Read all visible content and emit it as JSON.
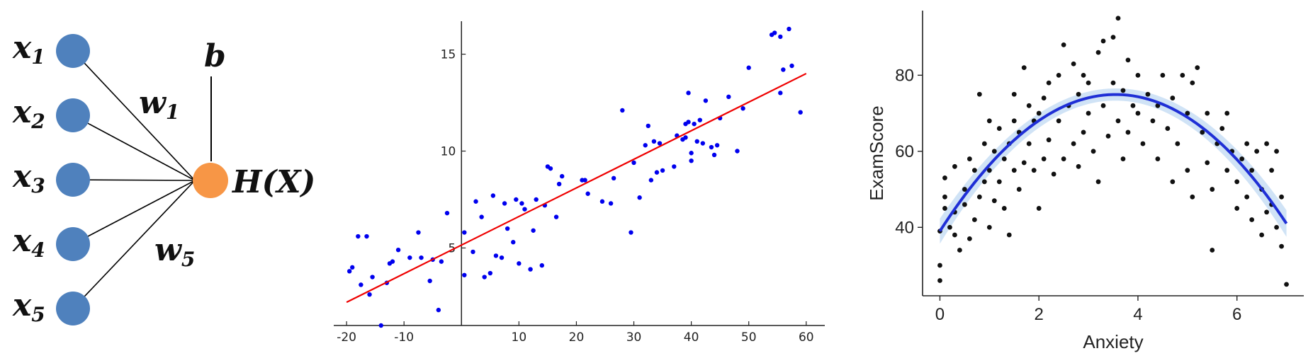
{
  "neuron_diagram": {
    "inputs": [
      {
        "name": "x",
        "sub": "1"
      },
      {
        "name": "x",
        "sub": "2"
      },
      {
        "name": "x",
        "sub": "3"
      },
      {
        "name": "x",
        "sub": "4"
      },
      {
        "name": "x",
        "sub": "5"
      }
    ],
    "bias": "b",
    "weight_labels": [
      {
        "name": "w",
        "sub": "1"
      },
      {
        "name": "w",
        "sub": "5"
      }
    ],
    "output": "H(X)",
    "colors": {
      "input": "#4f81bd",
      "output": "#f79646",
      "edge": "#000000"
    }
  },
  "chart_data": [
    {
      "type": "scatter",
      "title": "",
      "xlabel": "",
      "ylabel": "",
      "xlim": [
        -21,
        62
      ],
      "ylim": [
        1,
        16.7
      ],
      "xticks": [
        -20,
        -10,
        10,
        20,
        30,
        40,
        50,
        60
      ],
      "yticks": [
        5,
        10,
        15
      ],
      "axes_style": "centered-at-origin",
      "grid": false,
      "point_color": "#0000ee",
      "fit_color": "#ee0000",
      "fit_line": {
        "x": [
          -20,
          60
        ],
        "y": [
          2.2,
          14.0
        ]
      },
      "points": [
        [
          -19.5,
          3.8
        ],
        [
          -19,
          4.0
        ],
        [
          -18,
          5.6
        ],
        [
          -17.5,
          3.1
        ],
        [
          -16.5,
          5.6
        ],
        [
          -16,
          2.6
        ],
        [
          -15.5,
          3.5
        ],
        [
          -14,
          1.0
        ],
        [
          -13,
          3.2
        ],
        [
          -12.5,
          4.2
        ],
        [
          -12,
          4.3
        ],
        [
          -11,
          4.9
        ],
        [
          -9,
          4.5
        ],
        [
          -7.5,
          5.8
        ],
        [
          -7,
          4.5
        ],
        [
          -5.5,
          3.3
        ],
        [
          -5,
          4.4
        ],
        [
          -4,
          1.8
        ],
        [
          -3.5,
          4.3
        ],
        [
          -2.5,
          6.8
        ],
        [
          0.5,
          3.6
        ],
        [
          0.5,
          5.8
        ],
        [
          2,
          4.8
        ],
        [
          2.5,
          7.4
        ],
        [
          3.5,
          6.6
        ],
        [
          4,
          3.5
        ],
        [
          5,
          3.7
        ],
        [
          5.5,
          7.7
        ],
        [
          6,
          4.6
        ],
        [
          7,
          4.5
        ],
        [
          7.5,
          7.3
        ],
        [
          8,
          6.0
        ],
        [
          9,
          5.3
        ],
        [
          9.5,
          7.5
        ],
        [
          10,
          4.2
        ],
        [
          10.5,
          7.3
        ],
        [
          11,
          7.0
        ],
        [
          12,
          3.9
        ],
        [
          12.5,
          5.9
        ],
        [
          13,
          7.5
        ],
        [
          14,
          4.1
        ],
        [
          14.5,
          7.2
        ],
        [
          15,
          9.2
        ],
        [
          15.5,
          9.1
        ],
        [
          16.5,
          6.6
        ],
        [
          17,
          8.3
        ],
        [
          17.5,
          8.7
        ],
        [
          21,
          8.5
        ],
        [
          21.5,
          8.5
        ],
        [
          22,
          7.8
        ],
        [
          24.5,
          7.4
        ],
        [
          26,
          7.3
        ],
        [
          26.5,
          8.6
        ],
        [
          28,
          12.1
        ],
        [
          29.5,
          5.8
        ],
        [
          30,
          9.4
        ],
        [
          31,
          7.6
        ],
        [
          32,
          10.3
        ],
        [
          32.5,
          11.3
        ],
        [
          33,
          8.5
        ],
        [
          33.5,
          10.5
        ],
        [
          34,
          8.9
        ],
        [
          34.5,
          10.4
        ],
        [
          35,
          9.0
        ],
        [
          37,
          9.2
        ],
        [
          37.5,
          10.8
        ],
        [
          38.5,
          10.6
        ],
        [
          39,
          10.7
        ],
        [
          39,
          11.4
        ],
        [
          39.5,
          11.5
        ],
        [
          39.5,
          13.0
        ],
        [
          40,
          9.5
        ],
        [
          40,
          9.9
        ],
        [
          40.5,
          11.4
        ],
        [
          41,
          10.5
        ],
        [
          41.5,
          11.6
        ],
        [
          42,
          10.4
        ],
        [
          42.5,
          12.6
        ],
        [
          43.5,
          10.2
        ],
        [
          44,
          9.8
        ],
        [
          44.5,
          10.3
        ],
        [
          45,
          11.7
        ],
        [
          46.5,
          12.8
        ],
        [
          48,
          10.0
        ],
        [
          49,
          12.2
        ],
        [
          50,
          14.3
        ],
        [
          54,
          16.0
        ],
        [
          54.5,
          16.1
        ],
        [
          55.5,
          13.0
        ],
        [
          55.5,
          15.9
        ],
        [
          56,
          14.2
        ],
        [
          57,
          16.3
        ],
        [
          57.5,
          14.4
        ],
        [
          59,
          12.0
        ]
      ]
    },
    {
      "type": "scatter",
      "title": "",
      "xlabel": "Anxiety",
      "ylabel": "ExamScore",
      "xlim": [
        -0.35,
        7.35
      ],
      "ylim": [
        22,
        97
      ],
      "xticks": [
        0,
        2,
        4,
        6
      ],
      "yticks": [
        40,
        60,
        80
      ],
      "grid": false,
      "point_color": "#111111",
      "fit_color": "#1f2fd6",
      "fit_band_color": "#aaccee",
      "fit_curve": {
        "type": "quadratic",
        "x_range": [
          0,
          7
        ],
        "vertex": [
          3.35,
          71
        ],
        "y_at_0": 39,
        "y_at_7": 41
      },
      "points": [
        [
          0,
          26
        ],
        [
          0,
          30
        ],
        [
          0,
          39
        ],
        [
          0.1,
          45
        ],
        [
          0.1,
          48
        ],
        [
          0.1,
          53
        ],
        [
          0.2,
          40
        ],
        [
          0.3,
          38
        ],
        [
          0.3,
          44
        ],
        [
          0.3,
          56
        ],
        [
          0.4,
          34
        ],
        [
          0.5,
          46
        ],
        [
          0.5,
          50
        ],
        [
          0.6,
          37
        ],
        [
          0.6,
          58
        ],
        [
          0.7,
          42
        ],
        [
          0.7,
          55
        ],
        [
          0.8,
          75
        ],
        [
          0.8,
          48
        ],
        [
          0.9,
          52
        ],
        [
          0.9,
          62
        ],
        [
          1.0,
          40
        ],
        [
          1.0,
          55
        ],
        [
          1.0,
          68
        ],
        [
          1.1,
          47
        ],
        [
          1.1,
          60
        ],
        [
          1.2,
          52
        ],
        [
          1.2,
          66
        ],
        [
          1.3,
          45
        ],
        [
          1.3,
          58
        ],
        [
          1.4,
          38
        ],
        [
          1.4,
          62
        ],
        [
          1.5,
          55
        ],
        [
          1.5,
          68
        ],
        [
          1.5,
          75
        ],
        [
          1.6,
          50
        ],
        [
          1.6,
          65
        ],
        [
          1.7,
          82
        ],
        [
          1.7,
          57
        ],
        [
          1.8,
          62
        ],
        [
          1.8,
          72
        ],
        [
          1.9,
          55
        ],
        [
          1.9,
          68
        ],
        [
          2.0,
          45
        ],
        [
          2.0,
          70
        ],
        [
          2.1,
          58
        ],
        [
          2.1,
          74
        ],
        [
          2.2,
          63
        ],
        [
          2.2,
          78
        ],
        [
          2.3,
          54
        ],
        [
          2.4,
          68
        ],
        [
          2.4,
          80
        ],
        [
          2.5,
          58
        ],
        [
          2.5,
          88
        ],
        [
          2.6,
          72
        ],
        [
          2.7,
          62
        ],
        [
          2.7,
          83
        ],
        [
          2.8,
          56
        ],
        [
          2.8,
          75
        ],
        [
          2.9,
          65
        ],
        [
          2.9,
          80
        ],
        [
          3.0,
          70
        ],
        [
          3.0,
          78
        ],
        [
          3.1,
          60
        ],
        [
          3.2,
          52
        ],
        [
          3.2,
          86
        ],
        [
          3.3,
          72
        ],
        [
          3.3,
          89
        ],
        [
          3.4,
          64
        ],
        [
          3.5,
          78
        ],
        [
          3.5,
          90
        ],
        [
          3.6,
          68
        ],
        [
          3.6,
          95
        ],
        [
          3.7,
          58
        ],
        [
          3.7,
          76
        ],
        [
          3.8,
          65
        ],
        [
          3.8,
          84
        ],
        [
          3.9,
          72
        ],
        [
          4.0,
          70
        ],
        [
          4.0,
          80
        ],
        [
          4.1,
          62
        ],
        [
          4.2,
          75
        ],
        [
          4.3,
          68
        ],
        [
          4.4,
          58
        ],
        [
          4.4,
          72
        ],
        [
          4.5,
          80
        ],
        [
          4.6,
          66
        ],
        [
          4.7,
          52
        ],
        [
          4.7,
          74
        ],
        [
          4.8,
          62
        ],
        [
          4.9,
          80
        ],
        [
          5.0,
          70
        ],
        [
          5.0,
          55
        ],
        [
          5.1,
          48
        ],
        [
          5.1,
          78
        ],
        [
          5.2,
          82
        ],
        [
          5.3,
          65
        ],
        [
          5.4,
          57
        ],
        [
          5.4,
          70
        ],
        [
          5.5,
          34
        ],
        [
          5.5,
          50
        ],
        [
          5.6,
          62
        ],
        [
          5.7,
          66
        ],
        [
          5.8,
          55
        ],
        [
          5.8,
          70
        ],
        [
          5.9,
          60
        ],
        [
          6.0,
          52
        ],
        [
          6.0,
          45
        ],
        [
          6.1,
          58
        ],
        [
          6.2,
          48
        ],
        [
          6.2,
          62
        ],
        [
          6.3,
          42
        ],
        [
          6.3,
          55
        ],
        [
          6.4,
          60
        ],
        [
          6.5,
          50
        ],
        [
          6.5,
          38
        ],
        [
          6.6,
          62
        ],
        [
          6.6,
          44
        ],
        [
          6.7,
          55
        ],
        [
          6.7,
          46
        ],
        [
          6.8,
          40
        ],
        [
          6.8,
          60
        ],
        [
          6.9,
          35
        ],
        [
          6.9,
          48
        ],
        [
          7.0,
          25
        ]
      ]
    }
  ]
}
